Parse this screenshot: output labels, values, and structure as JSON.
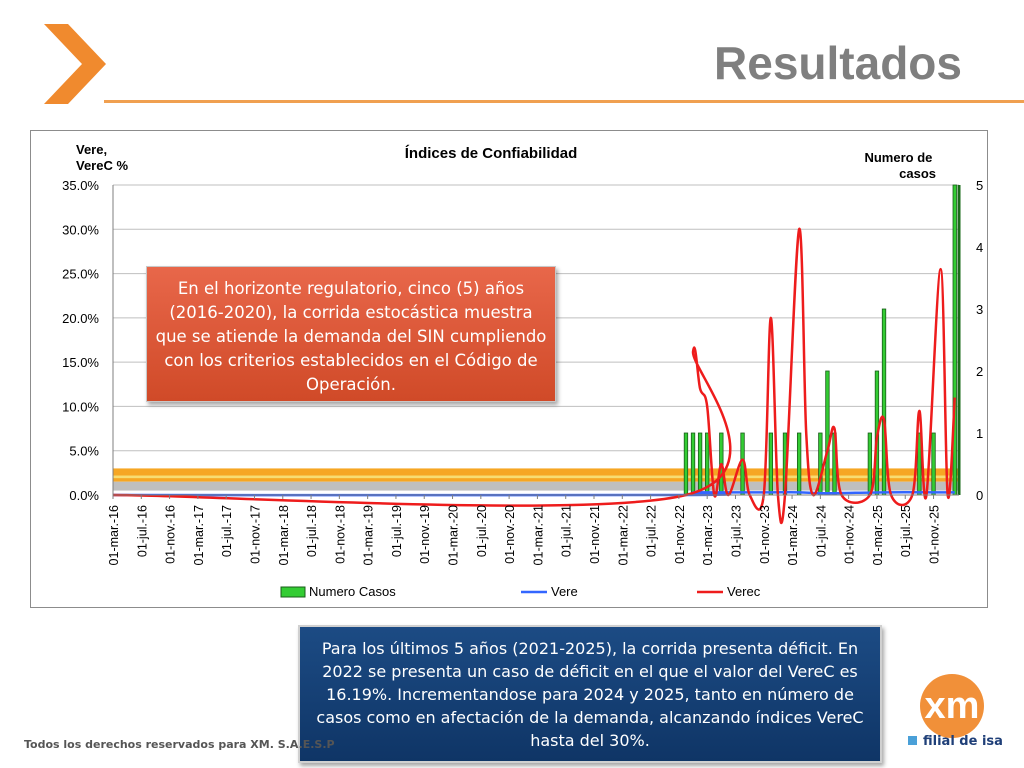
{
  "slide": {
    "title": "Resultados",
    "footer": "Todos los derechos reservados para XM. S.A.E.S.P"
  },
  "logo": {
    "text": "xm",
    "tagline": "filial de isa"
  },
  "callouts": {
    "top": "En el horizonte regulatorio, cinco (5) años (2016-2020), la corrida estocástica muestra que se atiende la demanda del SIN cumpliendo con los criterios establecidos en el Código de Operación.",
    "bottom": "Para los últimos 5 años (2021-2025), la corrida presenta déficit. En 2022 se presenta un caso de déficit en el que el valor del VereC es 16.19%. Incrementandose para 2024 y 2025, tanto en número de casos como en afectación de la demanda, alcanzando índices VereC hasta del 30%."
  },
  "colors": {
    "numero_casos": "#33cc33",
    "vere": "#3366ff",
    "verec": "#ee1c1c",
    "accent": "#f08a2e"
  },
  "chart_data": {
    "type": "bar",
    "title": "Índices de Confiabilidad",
    "ylabel_left": "Vere, VereC %",
    "ylabel_right": "Numero de casos",
    "ylim_left": [
      0,
      35
    ],
    "ylim_right": [
      0,
      5
    ],
    "left_ticks": [
      "0.0%",
      "5.0%",
      "10.0%",
      "15.0%",
      "20.0%",
      "25.0%",
      "30.0%",
      "35.0%"
    ],
    "right_ticks": [
      "0",
      "1",
      "2",
      "3",
      "4",
      "5"
    ],
    "x_labels": [
      "01-mar.-16",
      "01-jul.-16",
      "01-nov.-16",
      "01-mar.-17",
      "01-jul.-17",
      "01-nov.-17",
      "01-mar.-18",
      "01-jul.-18",
      "01-nov.-18",
      "01-mar.-19",
      "01-jul.-19",
      "01-nov.-19",
      "01-mar.-20",
      "01-jul.-20",
      "01-nov.-20",
      "01-mar.-21",
      "01-jul.-21",
      "01-nov.-21",
      "01-mar.-22",
      "01-jul.-22",
      "01-nov.-22",
      "01-mar.-23",
      "01-jul.-23",
      "01-nov.-23",
      "01-mar.-24",
      "01-jul.-24",
      "01-nov.-24",
      "01-mar.-25",
      "01-jul.-25",
      "01-nov.-25"
    ],
    "legend": [
      "Numero Casos",
      "Vere",
      "Verec"
    ],
    "legend_position": "bottom",
    "series": [
      {
        "name": "Numero Casos",
        "type": "bar",
        "axis": "right",
        "points": [
          {
            "month": "dic-22",
            "value": 1
          },
          {
            "month": "ene-23",
            "value": 1
          },
          {
            "month": "feb-23",
            "value": 1
          },
          {
            "month": "mar-23",
            "value": 1
          },
          {
            "month": "may-23",
            "value": 1
          },
          {
            "month": "ago-23",
            "value": 1
          },
          {
            "month": "dic-23",
            "value": 1
          },
          {
            "month": "feb-24",
            "value": 1
          },
          {
            "month": "abr-24",
            "value": 1
          },
          {
            "month": "jul-24",
            "value": 1
          },
          {
            "month": "ago-24",
            "value": 2
          },
          {
            "month": "sep-24",
            "value": 1
          },
          {
            "month": "feb-25",
            "value": 1
          },
          {
            "month": "mar-25",
            "value": 2
          },
          {
            "month": "abr-25",
            "value": 3
          },
          {
            "month": "sep-25",
            "value": 1
          },
          {
            "month": "nov-25",
            "value": 1
          },
          {
            "month": "feb-26",
            "value": 5
          }
        ]
      },
      {
        "name": "Verec",
        "type": "line",
        "axis": "left",
        "points": [
          {
            "month": "dic-22",
            "value": 0
          },
          {
            "month": "ene-23",
            "value": 16.19
          },
          {
            "month": "feb-23",
            "value": 12
          },
          {
            "month": "mar-23",
            "value": 10
          },
          {
            "month": "abr-23",
            "value": 0
          },
          {
            "month": "may-23",
            "value": 3.5
          },
          {
            "month": "jun-23",
            "value": 0
          },
          {
            "month": "ago-23",
            "value": 4
          },
          {
            "month": "sep-23",
            "value": 0
          },
          {
            "month": "nov-23",
            "value": 0
          },
          {
            "month": "dic-23",
            "value": 20
          },
          {
            "month": "ene-24",
            "value": 0
          },
          {
            "month": "feb-24",
            "value": 0
          },
          {
            "month": "abr-24",
            "value": 30
          },
          {
            "month": "may-24",
            "value": 7
          },
          {
            "month": "jun-24",
            "value": 0
          },
          {
            "month": "ago-24",
            "value": 5
          },
          {
            "month": "sep-24",
            "value": 7.5
          },
          {
            "month": "oct-24",
            "value": 0
          },
          {
            "month": "feb-25",
            "value": 0
          },
          {
            "month": "mar-25",
            "value": 6.5
          },
          {
            "month": "abr-25",
            "value": 8.5
          },
          {
            "month": "may-25",
            "value": 0
          },
          {
            "month": "ago-25",
            "value": 0
          },
          {
            "month": "sep-25",
            "value": 9.5
          },
          {
            "month": "oct-25",
            "value": 0
          },
          {
            "month": "dic-25",
            "value": 25.5
          },
          {
            "month": "ene-26",
            "value": 0
          },
          {
            "month": "feb-26",
            "value": 11
          }
        ]
      },
      {
        "name": "Vere",
        "type": "line",
        "axis": "left",
        "points": [
          {
            "month": "dic-22",
            "value": 0
          },
          {
            "month": "ene-23",
            "value": 0.3
          },
          {
            "month": "mar-23",
            "value": 0.3
          },
          {
            "month": "dic-23",
            "value": 0.3
          },
          {
            "month": "abr-24",
            "value": 0.3
          },
          {
            "month": "ago-24",
            "value": 0.2
          },
          {
            "month": "abr-25",
            "value": 0.3
          },
          {
            "month": "dic-25",
            "value": 0.3
          },
          {
            "month": "feb-26",
            "value": 0.3
          }
        ]
      }
    ]
  }
}
